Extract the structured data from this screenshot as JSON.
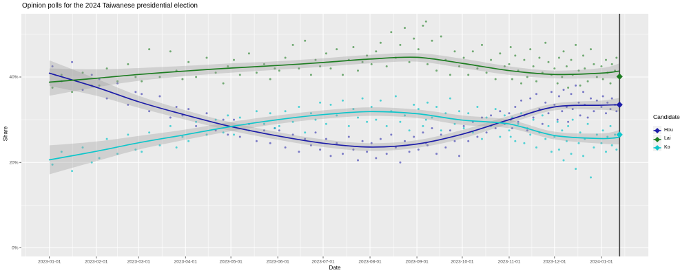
{
  "header": {
    "title": "Opinion polls for the 2024 Taiwanese presidential election"
  },
  "chart_data": {
    "type": "scatter",
    "title": "Opinion polls for the 2024 Taiwanese presidential election",
    "xlabel": "Date",
    "ylabel": "Share",
    "ylim": [
      -2,
      54.8
    ],
    "grid": "on",
    "legend_position": "right",
    "legend": {
      "title": "Candidate"
    },
    "x_tick_days": [
      0,
      31,
      59,
      90,
      120,
      151,
      181,
      212,
      243,
      273,
      304,
      334,
      365
    ],
    "x_tick_labels": [
      "2023-01-01",
      "2023-02-01",
      "2023-03-01",
      "2023-04-01",
      "2023-05-01",
      "2023-06-01",
      "2023-07-01",
      "2023-08-01",
      "2023-09-01",
      "2023-10-01",
      "2023-11-01",
      "2023-12-01",
      "2024-01-01"
    ],
    "y_ticks": [
      {
        "value": 0,
        "label": "0%"
      },
      {
        "value": 20,
        "label": "20%"
      },
      {
        "value": 40,
        "label": "40%"
      }
    ],
    "y_minor": [
      10,
      30,
      50
    ],
    "election_day": 377,
    "panel_color": "#EBEBEB",
    "grid_color": "#FFFFFF",
    "band_color": "#999999",
    "vline_color": "#4a4a4a",
    "tick_text_color": "#4d4d4d",
    "series": [
      {
        "name": "Hou",
        "color": "#1c1ca8",
        "point_opacity": 0.55,
        "result": 33.5,
        "trend_days": [
          0,
          31,
          59,
          90,
          120,
          151,
          181,
          212,
          243,
          273,
          304,
          334,
          365,
          377
        ],
        "trend": [
          40.9,
          37.6,
          34.2,
          31.1,
          28.4,
          26.2,
          24.5,
          23.6,
          24.3,
          26.6,
          30.0,
          33.0,
          33.4,
          33.5
        ],
        "ci": [
          3.0,
          2.0,
          1.4,
          1.1,
          1.0,
          0.9,
          0.9,
          0.9,
          0.9,
          1.0,
          0.9,
          0.8,
          1.1,
          1.6
        ]
      },
      {
        "name": "Lai",
        "color": "#1e7d22",
        "point_opacity": 0.6,
        "result": 40.1,
        "trend_days": [
          0,
          31,
          59,
          90,
          120,
          151,
          181,
          212,
          243,
          273,
          304,
          334,
          365,
          377
        ],
        "trend": [
          38.8,
          39.7,
          40.6,
          41.4,
          42.1,
          42.7,
          43.4,
          44.2,
          44.6,
          43.2,
          41.5,
          40.6,
          40.9,
          41.4
        ],
        "ci": [
          3.2,
          2.1,
          1.5,
          1.2,
          1.1,
          1.0,
          1.0,
          1.0,
          1.0,
          1.1,
          1.0,
          0.9,
          1.2,
          1.8
        ]
      },
      {
        "name": "Ko",
        "color": "#0ec6cb",
        "point_opacity": 0.7,
        "result": 26.5,
        "trend_days": [
          0,
          31,
          59,
          90,
          120,
          151,
          181,
          212,
          243,
          273,
          304,
          334,
          365,
          377
        ],
        "trend": [
          20.6,
          22.6,
          24.6,
          26.5,
          28.4,
          30.0,
          31.2,
          31.9,
          31.4,
          29.9,
          29.0,
          26.3,
          25.6,
          25.9
        ],
        "ci": [
          3.4,
          2.3,
          1.6,
          1.2,
          1.1,
          1.0,
          1.0,
          1.0,
          1.0,
          1.1,
          1.0,
          0.9,
          1.2,
          1.7
        ]
      }
    ],
    "polls_columns": [
      "day",
      "Hou",
      "Lai",
      "Ko"
    ],
    "polls": [
      [
        2,
        42.5,
        37.5,
        19.5
      ],
      [
        8,
        39.0,
        40.5,
        22.5
      ],
      [
        15,
        43.5,
        36.5,
        18.0
      ],
      [
        22,
        37.0,
        41.0,
        23.5
      ],
      [
        28,
        40.5,
        38.0,
        20.0
      ],
      [
        33,
        39.5,
        38.0,
        21.0
      ],
      [
        38,
        35.0,
        42.0,
        25.5
      ],
      [
        45,
        38.5,
        39.0,
        22.0
      ],
      [
        52,
        33.5,
        43.0,
        26.5
      ],
      [
        57,
        36.5,
        40.0,
        23.0
      ],
      [
        61,
        36.0,
        39.0,
        22.5
      ],
      [
        66,
        32.0,
        46.5,
        27.0
      ],
      [
        73,
        35.5,
        40.0,
        24.0
      ],
      [
        80,
        30.5,
        46.0,
        28.5
      ],
      [
        84,
        33.0,
        41.5,
        23.5
      ],
      [
        88,
        31.0,
        39.5,
        26.0
      ],
      [
        92,
        32.5,
        43.5,
        25.0
      ],
      [
        97,
        28.5,
        40.0,
        29.5
      ],
      [
        104,
        31.5,
        44.5,
        26.5
      ],
      [
        110,
        27.5,
        41.0,
        30.0
      ],
      [
        115,
        30.0,
        38.5,
        27.0
      ],
      [
        118,
        26.5,
        42.5,
        31.0
      ],
      [
        122,
        30.0,
        44.0,
        26.5
      ],
      [
        126,
        26.0,
        40.5,
        30.5
      ],
      [
        132,
        29.0,
        45.5,
        27.5
      ],
      [
        137,
        25.0,
        41.0,
        32.0
      ],
      [
        142,
        27.5,
        43.0,
        29.0
      ],
      [
        146,
        24.5,
        39.5,
        31.5
      ],
      [
        149,
        28.0,
        42.0,
        28.0
      ],
      [
        152,
        27.5,
        41.5,
        28.5
      ],
      [
        156,
        23.5,
        44.5,
        32.0
      ],
      [
        161,
        26.5,
        47.5,
        29.5
      ],
      [
        165,
        22.5,
        42.0,
        33.0
      ],
      [
        169,
        25.5,
        48.5,
        27.0
      ],
      [
        173,
        24.0,
        40.5,
        31.5
      ],
      [
        176,
        27.0,
        44.0,
        30.0
      ],
      [
        179,
        23.0,
        42.5,
        34.0
      ],
      [
        183,
        25.5,
        45.5,
        29.0
      ],
      [
        186,
        21.5,
        42.0,
        33.5
      ],
      [
        190,
        24.5,
        46.5,
        31.0
      ],
      [
        194,
        22.0,
        40.5,
        34.5
      ],
      [
        198,
        26.0,
        44.0,
        28.5
      ],
      [
        201,
        23.0,
        47.0,
        32.5
      ],
      [
        204,
        20.5,
        41.5,
        30.5
      ],
      [
        207,
        25.0,
        43.5,
        35.0
      ],
      [
        210,
        22.5,
        45.0,
        29.5
      ],
      [
        213,
        24.5,
        43.0,
        33.0
      ],
      [
        216,
        21.0,
        46.0,
        30.0
      ],
      [
        219,
        25.5,
        48.0,
        34.5
      ],
      [
        223,
        22.0,
        42.5,
        28.5
      ],
      [
        226,
        26.5,
        50.5,
        32.0
      ],
      [
        229,
        23.5,
        44.5,
        35.5
      ],
      [
        232,
        20.0,
        47.5,
        29.5
      ],
      [
        235,
        25.0,
        51.5,
        31.0
      ],
      [
        238,
        22.5,
        43.5,
        27.5
      ],
      [
        241,
        26.0,
        49.0,
        33.5
      ],
      [
        244,
        23.0,
        46.5,
        32.5
      ],
      [
        247,
        27.0,
        52.0,
        28.5
      ],
      [
        249,
        24.5,
        53.0,
        30.0
      ],
      [
        250,
        24.0,
        43.0,
        34.0
      ],
      [
        253,
        28.0,
        48.5,
        30.5
      ],
      [
        256,
        22.0,
        41.5,
        33.0
      ],
      [
        259,
        26.5,
        49.5,
        27.5
      ],
      [
        262,
        23.5,
        44.0,
        31.5
      ],
      [
        265,
        27.5,
        40.5,
        35.0
      ],
      [
        268,
        25.0,
        46.0,
        29.0
      ],
      [
        271,
        21.5,
        42.5,
        32.0
      ],
      [
        274,
        28.5,
        44.5,
        28.0
      ],
      [
        277,
        25.0,
        40.5,
        31.5
      ],
      [
        280,
        29.5,
        46.0,
        27.0
      ],
      [
        283,
        26.0,
        42.0,
        33.0
      ],
      [
        286,
        30.5,
        47.5,
        25.5
      ],
      [
        289,
        27.0,
        41.0,
        30.5
      ],
      [
        292,
        31.0,
        44.0,
        28.5
      ],
      [
        295,
        28.0,
        39.5,
        32.5
      ],
      [
        298,
        32.0,
        45.5,
        26.0
      ],
      [
        301,
        29.0,
        42.5,
        31.0
      ],
      [
        304,
        31.5,
        43.0,
        27.5
      ],
      [
        305,
        30.0,
        47.0,
        26.0
      ],
      [
        306,
        28.0,
        39.5,
        30.5
      ],
      [
        308,
        33.0,
        45.0,
        25.0
      ],
      [
        310,
        29.5,
        41.5,
        29.0
      ],
      [
        312,
        34.5,
        38.5,
        31.5
      ],
      [
        314,
        31.0,
        44.0,
        24.5
      ],
      [
        316,
        27.5,
        40.0,
        28.0
      ],
      [
        318,
        35.0,
        46.5,
        26.5
      ],
      [
        320,
        30.5,
        42.5,
        30.0
      ],
      [
        322,
        36.0,
        39.0,
        23.5
      ],
      [
        324,
        32.5,
        44.5,
        27.0
      ],
      [
        326,
        29.0,
        41.0,
        31.0
      ],
      [
        328,
        34.0,
        48.0,
        25.5
      ],
      [
        330,
        31.5,
        43.5,
        28.5
      ],
      [
        332,
        36.5,
        40.5,
        22.5
      ],
      [
        334,
        33.5,
        42.0,
        26.0
      ],
      [
        336,
        30.0,
        38.5,
        29.5
      ],
      [
        337,
        35.5,
        44.5,
        23.0
      ],
      [
        339,
        32.0,
        40.0,
        27.5
      ],
      [
        340,
        37.0,
        46.0,
        20.5
      ],
      [
        342,
        33.0,
        42.5,
        25.0
      ],
      [
        343,
        29.5,
        37.5,
        28.5
      ],
      [
        345,
        36.0,
        44.0,
        22.0
      ],
      [
        346,
        32.5,
        40.5,
        30.0
      ],
      [
        348,
        38.0,
        47.5,
        18.5
      ],
      [
        350,
        34.0,
        41.5,
        24.5
      ],
      [
        351,
        31.0,
        38.0,
        27.0
      ],
      [
        353,
        36.5,
        45.0,
        21.5
      ],
      [
        354,
        33.5,
        42.0,
        25.5
      ],
      [
        356,
        30.5,
        39.0,
        29.0
      ],
      [
        358,
        35.0,
        46.5,
        16.5
      ],
      [
        360,
        32.0,
        43.0,
        23.5
      ],
      [
        362,
        34.5,
        40.0,
        26.5
      ],
      [
        365,
        33.0,
        42.5,
        24.5
      ],
      [
        366,
        35.5,
        39.5,
        27.5
      ],
      [
        368,
        31.5,
        44.0,
        22.5
      ],
      [
        369,
        34.0,
        41.0,
        26.0
      ],
      [
        371,
        32.5,
        38.5,
        28.5
      ],
      [
        372,
        35.0,
        43.0,
        24.0
      ],
      [
        374,
        33.5,
        41.5,
        26.5
      ],
      [
        375,
        32.0,
        44.5,
        23.0
      ]
    ]
  }
}
